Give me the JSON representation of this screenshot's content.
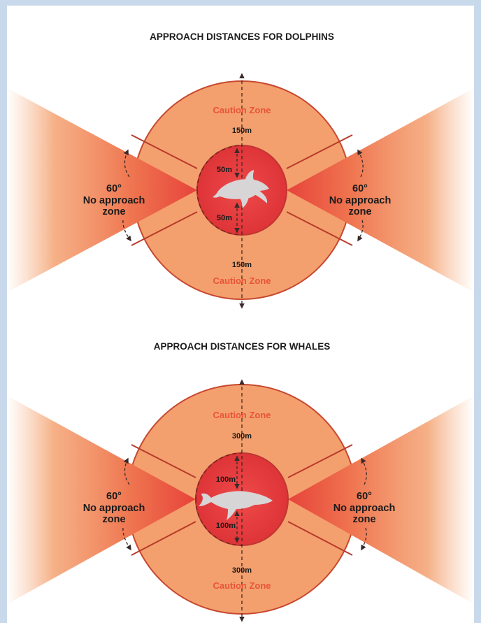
{
  "colors": {
    "page_border": "#c9d9ec",
    "caution_fill": "#f3a06e",
    "inner_fill": "#e9403f",
    "wedge_dark": "#e7433a",
    "caution_text": "#e9533a",
    "animal_fill": "#d5d2d4"
  },
  "diagrams": [
    {
      "title": "APPROACH DISTANCES FOR DOLPHINS",
      "caution_top": "Caution Zone",
      "caution_bottom": "Caution Zone",
      "outer_distance_top": "150m",
      "outer_distance_bottom": "150m",
      "inner_distance_top": "50m",
      "inner_distance_bottom": "50m",
      "angle": "60°",
      "no_approach": [
        "No approach",
        "zone"
      ],
      "animal": "dolphin-icon"
    },
    {
      "title": "APPROACH DISTANCES FOR WHALES",
      "caution_top": "Caution Zone",
      "caution_bottom": "Caution Zone",
      "outer_distance_top": "300m",
      "outer_distance_bottom": "300m",
      "inner_distance_top": "100m",
      "inner_distance_bottom": "100m",
      "angle": "60°",
      "no_approach": [
        "No approach",
        "zone"
      ],
      "animal": "whale-icon"
    }
  ]
}
